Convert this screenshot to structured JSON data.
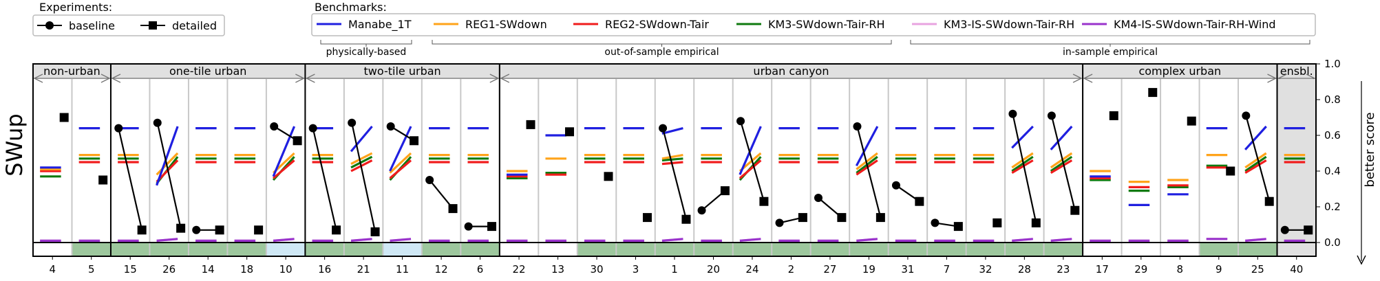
{
  "chart_data": {
    "type": "line",
    "ylabel": "SWup",
    "ylim": [
      -0.09,
      1.0
    ],
    "yticks": [
      "0.0",
      "0.2",
      "0.4",
      "0.6",
      "0.8",
      "1.0"
    ],
    "right_label": "better score",
    "legend_experiments": {
      "title": "Experiments:",
      "items": [
        {
          "name": "baseline",
          "marker": "circle",
          "color": "#000000"
        },
        {
          "name": "detailed",
          "marker": "square",
          "color": "#000000"
        }
      ]
    },
    "legend_benchmarks": {
      "title": "Benchmarks:",
      "items": [
        {
          "name": "Manabe_1T",
          "color": "#1f1fe0"
        },
        {
          "name": "REG1-SWdown",
          "color": "#ffa31a"
        },
        {
          "name": "REG2-SWdown-Tair",
          "color": "#f01c1c"
        },
        {
          "name": "KM3-SWdown-Tair-RH",
          "color": "#0f7a0f"
        },
        {
          "name": "KM3-IS-SWdown-Tair-RH",
          "color": "#e8a3e0"
        },
        {
          "name": "KM4-IS-SWdown-Tair-RH-Wind",
          "color": "#9933cc"
        }
      ],
      "brackets": [
        "physically-based",
        "out-of-sample empirical",
        "in-sample empirical"
      ]
    },
    "groups": [
      {
        "label": "non-urban",
        "sites": [
          "4",
          "5"
        ]
      },
      {
        "label": "one-tile urban",
        "sites": [
          "15",
          "26",
          "14",
          "18",
          "10"
        ]
      },
      {
        "label": "two-tile urban",
        "sites": [
          "16",
          "21",
          "11",
          "12",
          "6"
        ]
      },
      {
        "label": "urban canyon",
        "sites": [
          "22",
          "13",
          "30",
          "3",
          "1",
          "20",
          "24",
          "2",
          "27",
          "19",
          "31",
          "7",
          "32",
          "28",
          "23"
        ]
      },
      {
        "label": "complex urban",
        "sites": [
          "17",
          "29",
          "8",
          "9",
          "25"
        ]
      },
      {
        "label": "ensbl.",
        "sites": [
          "40"
        ]
      }
    ],
    "sites": [
      {
        "id": "4",
        "baseline": null,
        "detailed": 0.7,
        "manabe": [
          0.42,
          0.42
        ],
        "reg1": [
          0.41,
          0.41
        ],
        "reg2": [
          0.4,
          0.4
        ],
        "km3": [
          0.37,
          0.37
        ],
        "km3is": [
          0.01,
          0.01
        ],
        "km4is": [
          0.01,
          0.01
        ],
        "band": "none"
      },
      {
        "id": "5",
        "baseline": null,
        "detailed": 0.35,
        "manabe": [
          0.64,
          0.64
        ],
        "reg1": [
          0.49,
          0.49
        ],
        "reg2": [
          0.45,
          0.45
        ],
        "km3": [
          0.47,
          0.47
        ],
        "km3is": [
          0.01,
          0.01
        ],
        "km4is": [
          0.01,
          0.01
        ],
        "band": "green"
      },
      {
        "id": "15",
        "baseline": 0.64,
        "detailed": 0.07,
        "manabe": [
          0.64,
          0.64
        ],
        "reg1": [
          0.49,
          0.49
        ],
        "reg2": [
          0.45,
          0.45
        ],
        "km3": [
          0.47,
          0.47
        ],
        "km3is": [
          0.01,
          0.01
        ],
        "km4is": [
          0.01,
          0.01
        ],
        "band": "green"
      },
      {
        "id": "26",
        "baseline": 0.67,
        "detailed": 0.08,
        "manabe": [
          0.32,
          0.65
        ],
        "reg1": [
          0.38,
          0.5
        ],
        "reg2": [
          0.34,
          0.46
        ],
        "km3": [
          0.33,
          0.48
        ],
        "km3is": [
          0.01,
          0.02
        ],
        "km4is": [
          0.01,
          0.02
        ],
        "band": "green"
      },
      {
        "id": "14",
        "baseline": 0.07,
        "detailed": 0.07,
        "manabe": [
          0.64,
          0.64
        ],
        "reg1": [
          0.49,
          0.49
        ],
        "reg2": [
          0.45,
          0.45
        ],
        "km3": [
          0.47,
          0.47
        ],
        "km3is": [
          0.01,
          0.01
        ],
        "km4is": [
          0.01,
          0.01
        ],
        "band": "green"
      },
      {
        "id": "18",
        "baseline": null,
        "detailed": 0.07,
        "manabe": [
          0.64,
          0.64
        ],
        "reg1": [
          0.49,
          0.49
        ],
        "reg2": [
          0.45,
          0.45
        ],
        "km3": [
          0.47,
          0.47
        ],
        "km3is": [
          0.01,
          0.01
        ],
        "km4is": [
          0.01,
          0.01
        ],
        "band": "green"
      },
      {
        "id": "10",
        "baseline": 0.65,
        "detailed": 0.57,
        "manabe": [
          0.37,
          0.65
        ],
        "reg1": [
          0.39,
          0.5
        ],
        "reg2": [
          0.36,
          0.46
        ],
        "km3": [
          0.35,
          0.48
        ],
        "km3is": [
          0.01,
          0.02
        ],
        "km4is": [
          0.01,
          0.02
        ],
        "band": "blue"
      },
      {
        "id": "16",
        "baseline": 0.64,
        "detailed": 0.07,
        "manabe": [
          0.64,
          0.64
        ],
        "reg1": [
          0.49,
          0.49
        ],
        "reg2": [
          0.45,
          0.45
        ],
        "km3": [
          0.47,
          0.47
        ],
        "km3is": [
          0.01,
          0.01
        ],
        "km4is": [
          0.01,
          0.01
        ],
        "band": "green"
      },
      {
        "id": "21",
        "baseline": 0.67,
        "detailed": 0.06,
        "manabe": [
          0.51,
          0.65
        ],
        "reg1": [
          0.44,
          0.5
        ],
        "reg2": [
          0.4,
          0.46
        ],
        "km3": [
          0.42,
          0.48
        ],
        "km3is": [
          0.01,
          0.02
        ],
        "km4is": [
          0.01,
          0.02
        ],
        "band": "green"
      },
      {
        "id": "11",
        "baseline": 0.65,
        "detailed": 0.57,
        "manabe": [
          0.4,
          0.65
        ],
        "reg1": [
          0.39,
          0.5
        ],
        "reg2": [
          0.36,
          0.46
        ],
        "km3": [
          0.35,
          0.48
        ],
        "km3is": [
          0.01,
          0.02
        ],
        "km4is": [
          0.01,
          0.02
        ],
        "band": "blue"
      },
      {
        "id": "12",
        "baseline": 0.35,
        "detailed": 0.19,
        "manabe": [
          0.64,
          0.64
        ],
        "reg1": [
          0.49,
          0.49
        ],
        "reg2": [
          0.45,
          0.45
        ],
        "km3": [
          0.47,
          0.47
        ],
        "km3is": [
          0.01,
          0.01
        ],
        "km4is": [
          0.01,
          0.01
        ],
        "band": "green"
      },
      {
        "id": "6",
        "baseline": 0.09,
        "detailed": 0.09,
        "manabe": [
          0.64,
          0.64
        ],
        "reg1": [
          0.49,
          0.49
        ],
        "reg2": [
          0.45,
          0.45
        ],
        "km3": [
          0.47,
          0.47
        ],
        "km3is": [
          0.01,
          0.01
        ],
        "km4is": [
          0.01,
          0.01
        ],
        "band": "green"
      },
      {
        "id": "22",
        "baseline": null,
        "detailed": 0.66,
        "manabe": [
          0.38,
          0.38
        ],
        "reg1": [
          0.4,
          0.4
        ],
        "reg2": [
          0.37,
          0.37
        ],
        "km3": [
          0.36,
          0.36
        ],
        "km3is": [
          0.01,
          0.01
        ],
        "km4is": [
          0.01,
          0.01
        ],
        "band": "none"
      },
      {
        "id": "13",
        "baseline": null,
        "detailed": 0.62,
        "manabe": [
          0.6,
          0.6
        ],
        "reg1": [
          0.47,
          0.47
        ],
        "reg2": [
          0.38,
          0.38
        ],
        "km3": [
          0.39,
          0.39
        ],
        "km3is": [
          0.01,
          0.01
        ],
        "km4is": [
          0.01,
          0.01
        ],
        "band": "none"
      },
      {
        "id": "30",
        "baseline": null,
        "detailed": 0.37,
        "manabe": [
          0.64,
          0.64
        ],
        "reg1": [
          0.49,
          0.49
        ],
        "reg2": [
          0.45,
          0.45
        ],
        "km3": [
          0.47,
          0.47
        ],
        "km3is": [
          0.01,
          0.01
        ],
        "km4is": [
          0.01,
          0.01
        ],
        "band": "green"
      },
      {
        "id": "3",
        "baseline": null,
        "detailed": 0.14,
        "manabe": [
          0.64,
          0.64
        ],
        "reg1": [
          0.49,
          0.49
        ],
        "reg2": [
          0.45,
          0.45
        ],
        "km3": [
          0.47,
          0.47
        ],
        "km3is": [
          0.01,
          0.01
        ],
        "km4is": [
          0.01,
          0.01
        ],
        "band": "green"
      },
      {
        "id": "1",
        "baseline": 0.64,
        "detailed": 0.13,
        "manabe": [
          0.61,
          0.64
        ],
        "reg1": [
          0.47,
          0.49
        ],
        "reg2": [
          0.44,
          0.45
        ],
        "km3": [
          0.46,
          0.47
        ],
        "km3is": [
          0.01,
          0.02
        ],
        "km4is": [
          0.01,
          0.02
        ],
        "band": "green"
      },
      {
        "id": "20",
        "baseline": 0.18,
        "detailed": 0.29,
        "manabe": [
          0.64,
          0.64
        ],
        "reg1": [
          0.49,
          0.49
        ],
        "reg2": [
          0.45,
          0.45
        ],
        "km3": [
          0.47,
          0.47
        ],
        "km3is": [
          0.01,
          0.01
        ],
        "km4is": [
          0.01,
          0.01
        ],
        "band": "green"
      },
      {
        "id": "24",
        "baseline": 0.68,
        "detailed": 0.23,
        "manabe": [
          0.38,
          0.65
        ],
        "reg1": [
          0.4,
          0.5
        ],
        "reg2": [
          0.36,
          0.46
        ],
        "km3": [
          0.35,
          0.48
        ],
        "km3is": [
          0.01,
          0.02
        ],
        "km4is": [
          0.01,
          0.02
        ],
        "band": "green"
      },
      {
        "id": "2",
        "baseline": 0.11,
        "detailed": 0.14,
        "manabe": [
          0.64,
          0.64
        ],
        "reg1": [
          0.49,
          0.49
        ],
        "reg2": [
          0.45,
          0.45
        ],
        "km3": [
          0.47,
          0.47
        ],
        "km3is": [
          0.01,
          0.01
        ],
        "km4is": [
          0.01,
          0.01
        ],
        "band": "green"
      },
      {
        "id": "27",
        "baseline": 0.25,
        "detailed": 0.14,
        "manabe": [
          0.64,
          0.64
        ],
        "reg1": [
          0.49,
          0.49
        ],
        "reg2": [
          0.45,
          0.45
        ],
        "km3": [
          0.47,
          0.47
        ],
        "km3is": [
          0.01,
          0.01
        ],
        "km4is": [
          0.01,
          0.01
        ],
        "band": "green"
      },
      {
        "id": "19",
        "baseline": 0.65,
        "detailed": 0.14,
        "manabe": [
          0.43,
          0.65
        ],
        "reg1": [
          0.41,
          0.5
        ],
        "reg2": [
          0.38,
          0.46
        ],
        "km3": [
          0.39,
          0.48
        ],
        "km3is": [
          0.01,
          0.02
        ],
        "km4is": [
          0.01,
          0.02
        ],
        "band": "green"
      },
      {
        "id": "31",
        "baseline": 0.32,
        "detailed": 0.23,
        "manabe": [
          0.64,
          0.64
        ],
        "reg1": [
          0.49,
          0.49
        ],
        "reg2": [
          0.45,
          0.45
        ],
        "km3": [
          0.47,
          0.47
        ],
        "km3is": [
          0.01,
          0.01
        ],
        "km4is": [
          0.01,
          0.01
        ],
        "band": "green"
      },
      {
        "id": "7",
        "baseline": 0.11,
        "detailed": 0.09,
        "manabe": [
          0.64,
          0.64
        ],
        "reg1": [
          0.49,
          0.49
        ],
        "reg2": [
          0.45,
          0.45
        ],
        "km3": [
          0.47,
          0.47
        ],
        "km3is": [
          0.01,
          0.01
        ],
        "km4is": [
          0.01,
          0.01
        ],
        "band": "green"
      },
      {
        "id": "32",
        "baseline": null,
        "detailed": 0.11,
        "manabe": [
          0.64,
          0.64
        ],
        "reg1": [
          0.49,
          0.49
        ],
        "reg2": [
          0.45,
          0.45
        ],
        "km3": [
          0.47,
          0.47
        ],
        "km3is": [
          0.01,
          0.01
        ],
        "km4is": [
          0.01,
          0.01
        ],
        "band": "green"
      },
      {
        "id": "28",
        "baseline": 0.72,
        "detailed": 0.11,
        "manabe": [
          0.53,
          0.65
        ],
        "reg1": [
          0.42,
          0.5
        ],
        "reg2": [
          0.39,
          0.46
        ],
        "km3": [
          0.4,
          0.48
        ],
        "km3is": [
          0.01,
          0.02
        ],
        "km4is": [
          0.01,
          0.02
        ],
        "band": "green"
      },
      {
        "id": "23",
        "baseline": 0.71,
        "detailed": 0.18,
        "manabe": [
          0.52,
          0.65
        ],
        "reg1": [
          0.42,
          0.5
        ],
        "reg2": [
          0.39,
          0.46
        ],
        "km3": [
          0.4,
          0.48
        ],
        "km3is": [
          0.01,
          0.02
        ],
        "km4is": [
          0.01,
          0.02
        ],
        "band": "green"
      },
      {
        "id": "17",
        "baseline": null,
        "detailed": 0.71,
        "manabe": [
          0.37,
          0.37
        ],
        "reg1": [
          0.4,
          0.4
        ],
        "reg2": [
          0.36,
          0.36
        ],
        "km3": [
          0.35,
          0.35
        ],
        "km3is": [
          0.01,
          0.01
        ],
        "km4is": [
          0.01,
          0.01
        ],
        "band": "none"
      },
      {
        "id": "29",
        "baseline": null,
        "detailed": 0.84,
        "manabe": [
          0.21,
          0.21
        ],
        "reg1": [
          0.34,
          0.34
        ],
        "reg2": [
          0.31,
          0.31
        ],
        "km3": [
          0.29,
          0.29
        ],
        "km3is": [
          0.01,
          0.01
        ],
        "km4is": [
          0.01,
          0.01
        ],
        "band": "none"
      },
      {
        "id": "8",
        "baseline": null,
        "detailed": 0.68,
        "manabe": [
          0.27,
          0.27
        ],
        "reg1": [
          0.35,
          0.35
        ],
        "reg2": [
          0.32,
          0.32
        ],
        "km3": [
          0.31,
          0.31
        ],
        "km3is": [
          0.01,
          0.01
        ],
        "km4is": [
          0.01,
          0.01
        ],
        "band": "none"
      },
      {
        "id": "9",
        "baseline": null,
        "detailed": 0.4,
        "manabe": [
          0.64,
          0.64
        ],
        "reg1": [
          0.49,
          0.49
        ],
        "reg2": [
          0.42,
          0.42
        ],
        "km3": [
          0.43,
          0.43
        ],
        "km3is": [
          0.02,
          0.02
        ],
        "km4is": [
          0.02,
          0.02
        ],
        "band": "green"
      },
      {
        "id": "25",
        "baseline": 0.71,
        "detailed": 0.23,
        "manabe": [
          0.52,
          0.65
        ],
        "reg1": [
          0.42,
          0.5
        ],
        "reg2": [
          0.39,
          0.46
        ],
        "km3": [
          0.4,
          0.48
        ],
        "km3is": [
          0.01,
          0.02
        ],
        "km4is": [
          0.01,
          0.02
        ],
        "band": "green"
      },
      {
        "id": "40",
        "baseline": 0.07,
        "detailed": 0.07,
        "manabe": [
          0.64,
          0.64
        ],
        "reg1": [
          0.49,
          0.49
        ],
        "reg2": [
          0.45,
          0.45
        ],
        "km3": [
          0.47,
          0.47
        ],
        "km3is": [
          0.01,
          0.01
        ],
        "km4is": [
          0.01,
          0.01
        ],
        "band": "none",
        "shaded": true
      }
    ],
    "colors": {
      "manabe": "#1f1fe0",
      "reg1": "#ffa31a",
      "reg2": "#f01c1c",
      "km3": "#0f7a0f",
      "km3is": "#e8a3e0",
      "km4is": "#9933cc",
      "band_green": "#9dc79d",
      "band_blue": "#cfe8f5",
      "header_bg": "#e0e0e0",
      "shade_bg": "#e0e0e0"
    }
  }
}
